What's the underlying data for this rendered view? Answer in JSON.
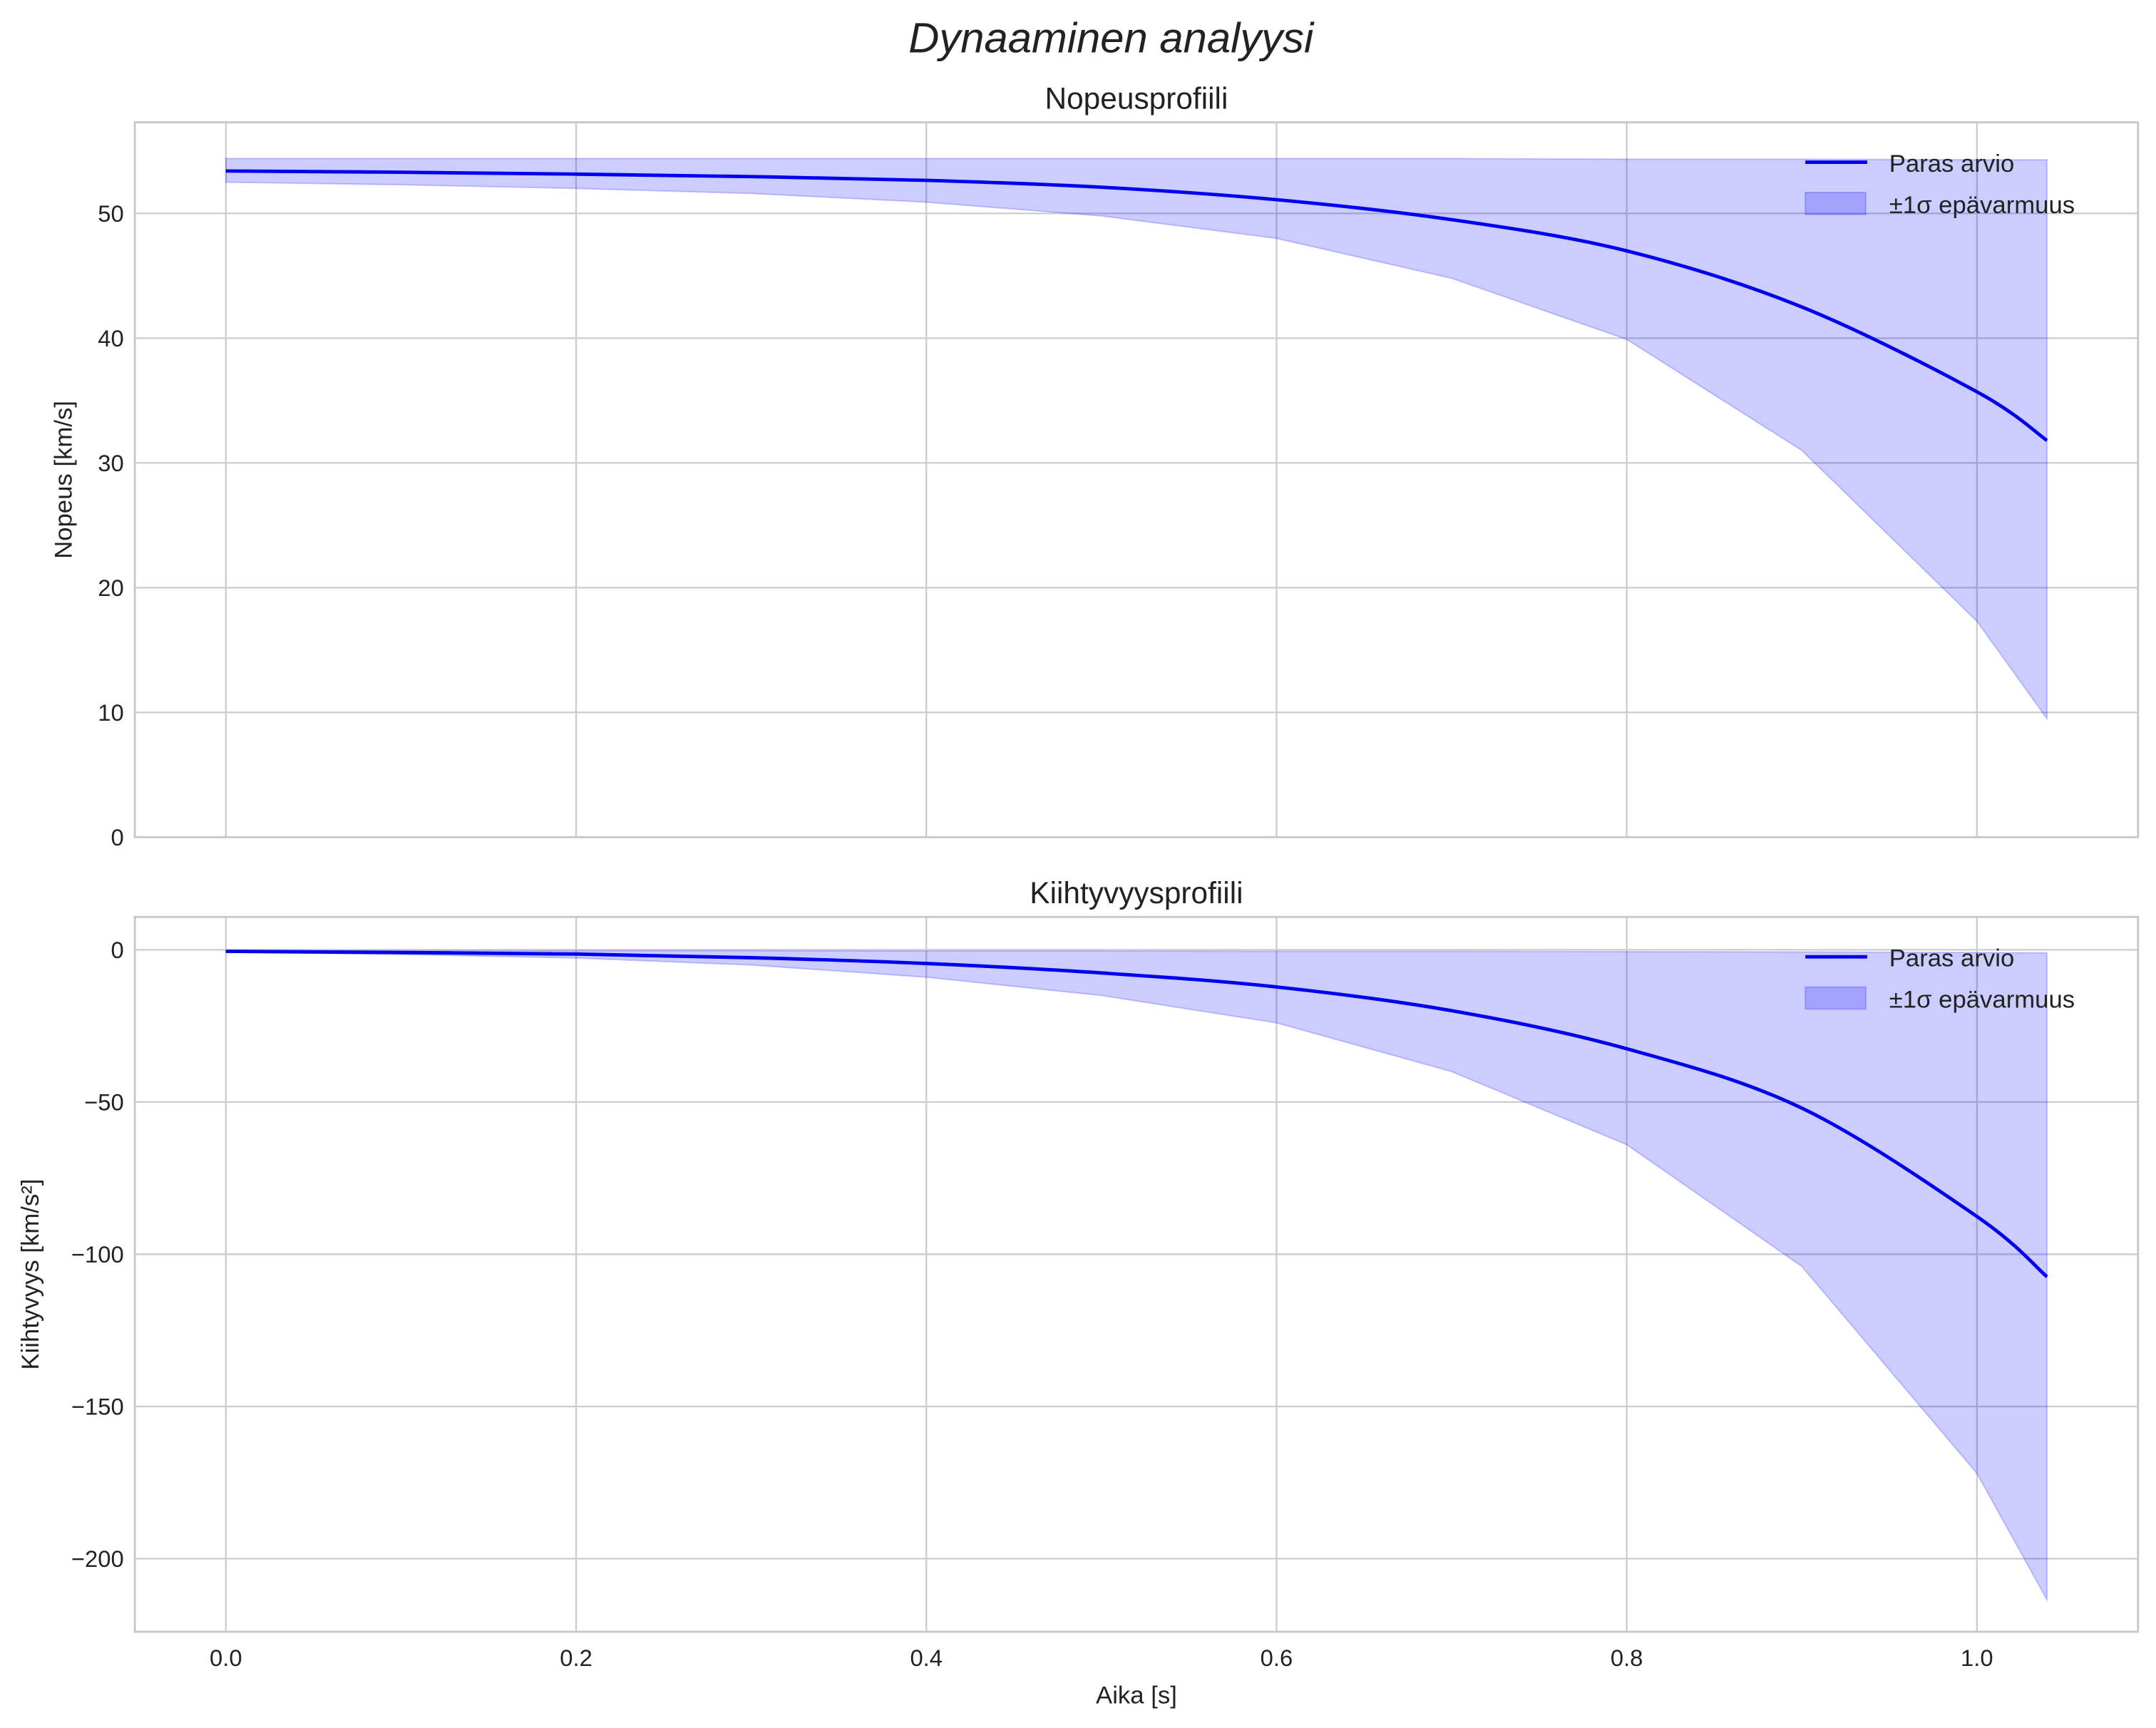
{
  "chart_data": [
    {
      "type": "line",
      "title": "Nopeusprofiili",
      "xlabel": "",
      "ylabel": "Nopeus [km/s]",
      "xlim": [
        -0.052,
        1.092
      ],
      "ylim": [
        0,
        57.3
      ],
      "xticks": [
        "0.0",
        "0.2",
        "0.4",
        "0.6",
        "0.8",
        "1.0"
      ],
      "xtick_values": [
        0,
        0.2,
        0.4,
        0.6,
        0.8,
        1.0
      ],
      "yticks": [
        "0",
        "10",
        "20",
        "30",
        "40",
        "50"
      ],
      "ytick_values": [
        0,
        10,
        20,
        30,
        40,
        50
      ],
      "grid": true,
      "legend_position": "top-right",
      "legend": [
        "Paras arvio",
        "±1σ epävarmuus"
      ],
      "x": [
        0,
        0.1,
        0.2,
        0.3,
        0.4,
        0.5,
        0.6,
        0.7,
        0.8,
        0.9,
        1.0,
        1.04
      ],
      "series": [
        {
          "name": "Paras arvio",
          "values": [
            53.4,
            53.3,
            53.15,
            52.95,
            52.65,
            52.1,
            51.1,
            49.5,
            47.0,
            42.5,
            35.7,
            31.8
          ]
        },
        {
          "name": "±1σ epävarmuus (lower)",
          "values": [
            52.5,
            52.3,
            52.0,
            51.6,
            50.9,
            49.8,
            48.0,
            44.8,
            39.9,
            31.0,
            17.3,
            9.5
          ]
        },
        {
          "name": "±1σ epävarmuus (upper)",
          "values": [
            54.4,
            54.4,
            54.4,
            54.4,
            54.4,
            54.4,
            54.4,
            54.4,
            54.35,
            54.35,
            54.3,
            54.3
          ]
        }
      ]
    },
    {
      "type": "line",
      "title": "Kiihtyvyysprofiili",
      "xlabel": "Aika [s]",
      "ylabel": "Kiihtyvyys [km/s²]",
      "xlim": [
        -0.052,
        1.092
      ],
      "ylim": [
        -224,
        10.8
      ],
      "xticks": [
        "0.0",
        "0.2",
        "0.4",
        "0.6",
        "0.8",
        "1.0"
      ],
      "xtick_values": [
        0,
        0.2,
        0.4,
        0.6,
        0.8,
        1.0
      ],
      "yticks": [
        "0",
        "−50",
        "−100",
        "−150",
        "−200"
      ],
      "ytick_values": [
        0,
        -50,
        -100,
        -150,
        -200
      ],
      "grid": true,
      "legend_position": "top-right",
      "legend": [
        "Paras arvio",
        "±1σ epävarmuus"
      ],
      "x": [
        0,
        0.1,
        0.2,
        0.3,
        0.4,
        0.5,
        0.6,
        0.7,
        0.8,
        0.9,
        1.0,
        1.04
      ],
      "series": [
        {
          "name": "Paras arvio",
          "values": [
            -0.5,
            -0.9,
            -1.4,
            -2.6,
            -4.5,
            -7.6,
            -12.2,
            -20,
            -32.5,
            -52,
            -87.6,
            -107.4
          ]
        },
        {
          "name": "±1σ epävarmuus (lower)",
          "values": [
            -0.7,
            -1.5,
            -2.7,
            -5,
            -9,
            -15,
            -24,
            -40,
            -64,
            -104,
            -172,
            -213.5
          ]
        },
        {
          "name": "±1σ epävarmuus (upper)",
          "values": [
            -0.3,
            -0.3,
            -0.3,
            -0.3,
            -0.4,
            -0.4,
            -0.5,
            -0.5,
            -0.6,
            -0.7,
            -0.9,
            -1.0
          ]
        }
      ]
    }
  ],
  "figure_title": "Dynaaminen analyysi",
  "colors": {
    "line": "#0000ee",
    "band": "#0000ff",
    "grid": "#cccccc"
  }
}
